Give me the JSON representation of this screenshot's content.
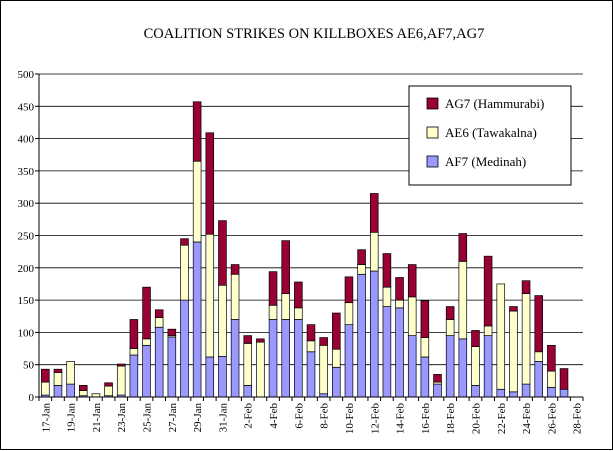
{
  "chart_data": {
    "type": "bar",
    "stacked": true,
    "title": "COALITION STRIKES ON KILLBOXES AE6,AF7,AG7",
    "xlabel": "",
    "ylabel": "",
    "ylim": [
      0,
      500
    ],
    "yticks": [
      0,
      50,
      100,
      150,
      200,
      250,
      300,
      350,
      400,
      450,
      500
    ],
    "grid": true,
    "legend_position": "top-right",
    "categories": [
      "17-Jan",
      "18-Jan",
      "19-Jan",
      "20-Jan",
      "21-Jan",
      "22-Jan",
      "23-Jan",
      "24-Jan",
      "25-Jan",
      "26-Jan",
      "27-Jan",
      "28-Jan",
      "29-Jan",
      "30-Jan",
      "31-Jan",
      "1-Feb",
      "2-Feb",
      "3-Feb",
      "4-Feb",
      "5-Feb",
      "6-Feb",
      "7-Feb",
      "8-Feb",
      "9-Feb",
      "10-Feb",
      "11-Feb",
      "12-Feb",
      "13-Feb",
      "14-Feb",
      "15-Feb",
      "16-Feb",
      "17-Feb",
      "18-Feb",
      "19-Feb",
      "20-Feb",
      "21-Feb",
      "22-Feb",
      "23-Feb",
      "24-Feb",
      "25-Feb",
      "26-Feb",
      "27-Feb",
      "28-Feb"
    ],
    "tick_labels": [
      "17-Jan",
      "",
      "19-Jan",
      "",
      "21-Jan",
      "",
      "23-Jan",
      "",
      "25-Jan",
      "",
      "27-Jan",
      "",
      "29-Jan",
      "",
      "31-Jan",
      "",
      "2-Feb",
      "",
      "4-Feb",
      "",
      "6-Feb",
      "",
      "8-Feb",
      "",
      "10-Feb",
      "",
      "12-Feb",
      "",
      "14-Feb",
      "",
      "16-Feb",
      "",
      "18-Feb",
      "",
      "20-Feb",
      "",
      "22-Feb",
      "",
      "24-Feb",
      "",
      "26-Feb",
      "",
      "28-Feb"
    ],
    "series": [
      {
        "name": "AF7 (Medinah)",
        "color": "#9999ff",
        "values": [
          3,
          18,
          20,
          2,
          0,
          2,
          3,
          65,
          80,
          108,
          93,
          150,
          240,
          62,
          63,
          120,
          18,
          0,
          120,
          120,
          120,
          70,
          5,
          46,
          112,
          190,
          195,
          140,
          138,
          95,
          62,
          20,
          95,
          90,
          18,
          95,
          12,
          8,
          20,
          55,
          15,
          12,
          0
        ]
      },
      {
        "name": "AE6 (Tawakalna)",
        "color": "#ffffcc",
        "values": [
          20,
          20,
          35,
          8,
          5,
          15,
          45,
          10,
          10,
          15,
          2,
          85,
          125,
          190,
          110,
          70,
          65,
          85,
          22,
          40,
          18,
          17,
          75,
          28,
          34,
          15,
          60,
          30,
          12,
          60,
          30,
          3,
          25,
          120,
          60,
          15,
          163,
          125,
          140,
          15,
          25,
          0,
          0
        ]
      },
      {
        "name": "AG7 (Hammurabi)",
        "color": "#990033",
        "values": [
          20,
          5,
          0,
          8,
          0,
          5,
          3,
          45,
          80,
          12,
          10,
          10,
          92,
          157,
          100,
          15,
          12,
          5,
          52,
          82,
          40,
          25,
          12,
          56,
          40,
          23,
          60,
          52,
          35,
          50,
          57,
          12,
          20,
          43,
          25,
          108,
          0,
          7,
          20,
          87,
          40,
          32,
          0
        ]
      }
    ]
  }
}
